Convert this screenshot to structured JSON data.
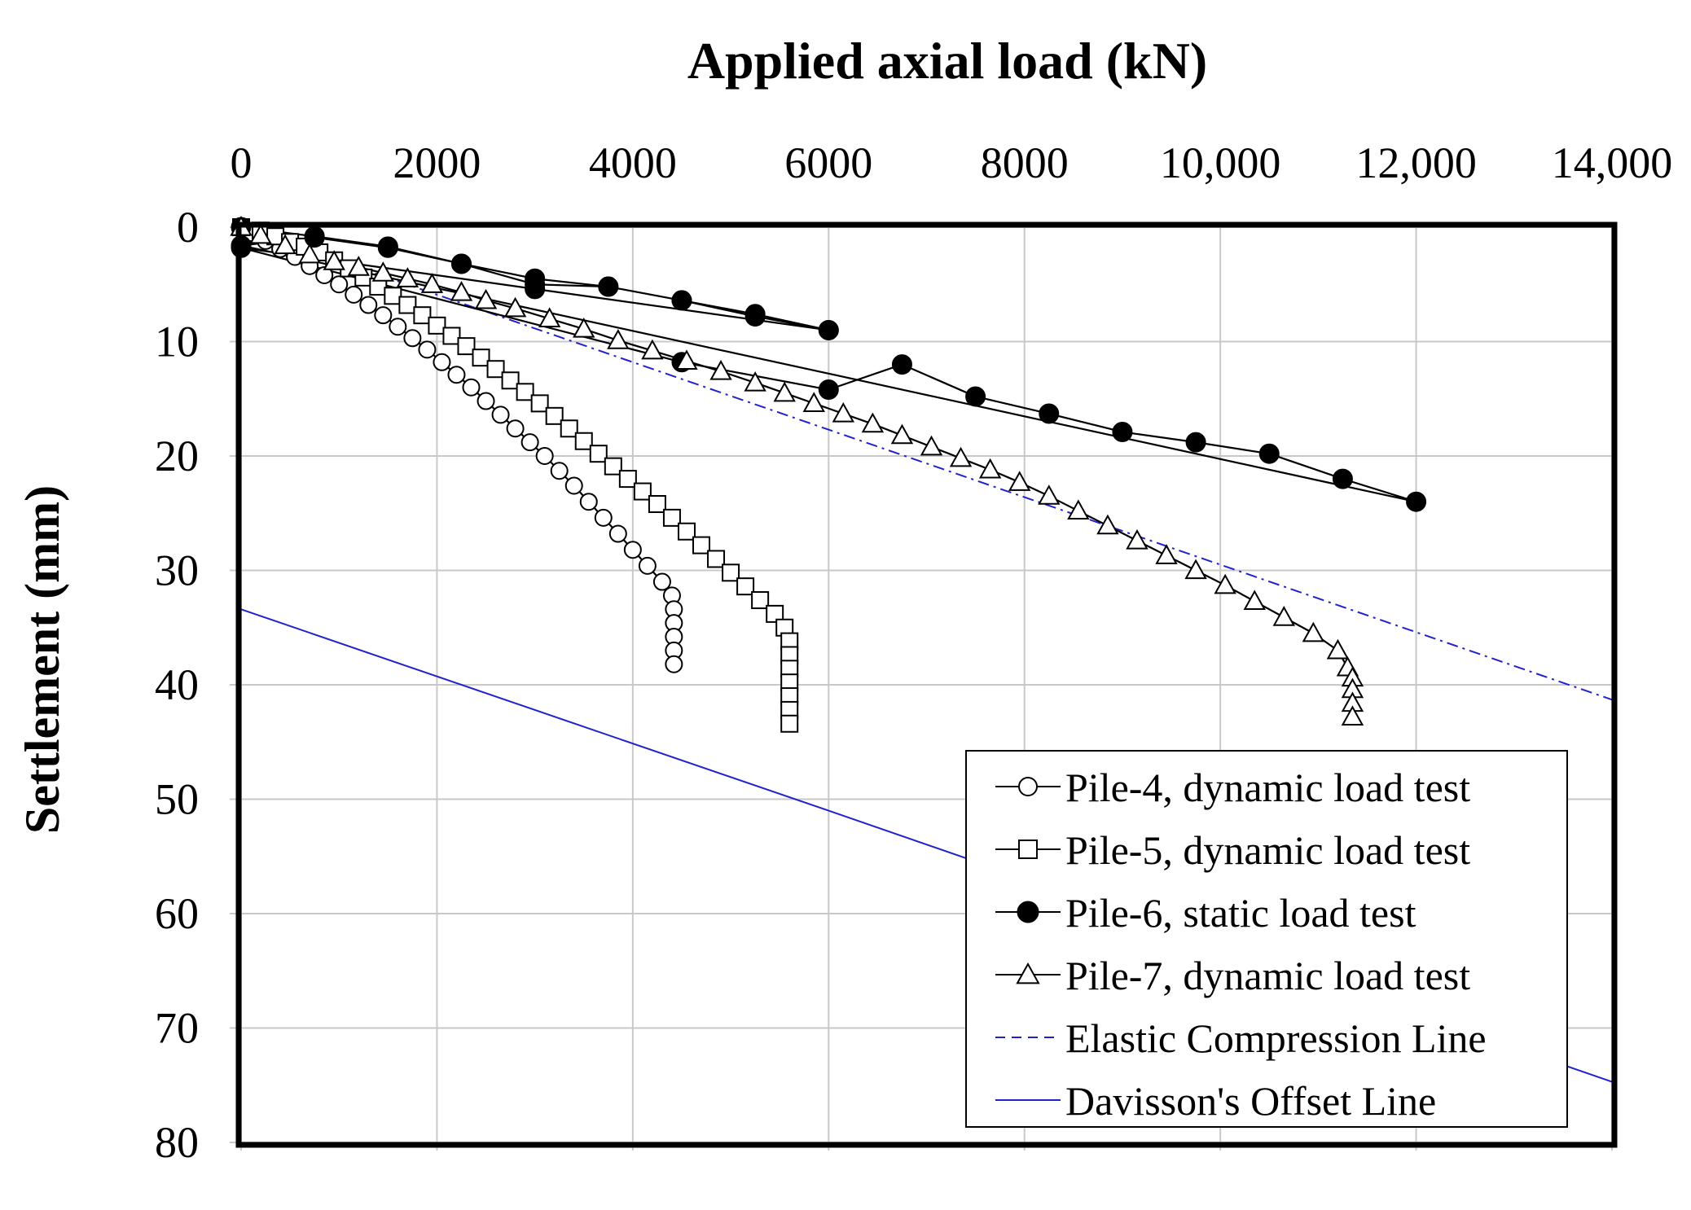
{
  "chart_data": {
    "type": "line",
    "title": "Applied axial load (kN)",
    "xlabel": "Applied axial load (kN)",
    "ylabel": "Settlement (mm)",
    "xlim": [
      0,
      14000
    ],
    "ylim": [
      0,
      80
    ],
    "y_inverted": true,
    "x_axis_position": "top",
    "x_ticks": [
      0,
      2000,
      4000,
      6000,
      8000,
      10000,
      12000,
      14000
    ],
    "x_tick_labels": [
      "0",
      "2000",
      "4000",
      "6000",
      "8000",
      "10,000",
      "12,000",
      "14,000"
    ],
    "y_ticks": [
      0,
      10,
      20,
      30,
      40,
      50,
      60,
      70,
      80
    ],
    "y_tick_labels": [
      "0",
      "10",
      "20",
      "30",
      "40",
      "50",
      "60",
      "70",
      "80"
    ],
    "grid": true,
    "legend_position": "bottom-right",
    "series": [
      {
        "name": "Pile-4, dynamic load test",
        "marker": "circle-open",
        "color": "#000000",
        "line": "solid",
        "points": [
          [
            0,
            0
          ],
          [
            100,
            0.5
          ],
          [
            250,
            1.2
          ],
          [
            400,
            1.9
          ],
          [
            550,
            2.6
          ],
          [
            700,
            3.4
          ],
          [
            850,
            4.2
          ],
          [
            1000,
            5.0
          ],
          [
            1150,
            5.9
          ],
          [
            1300,
            6.8
          ],
          [
            1450,
            7.7
          ],
          [
            1600,
            8.7
          ],
          [
            1750,
            9.7
          ],
          [
            1900,
            10.7
          ],
          [
            2050,
            11.8
          ],
          [
            2200,
            12.9
          ],
          [
            2350,
            14.0
          ],
          [
            2500,
            15.2
          ],
          [
            2650,
            16.4
          ],
          [
            2800,
            17.6
          ],
          [
            2950,
            18.8
          ],
          [
            3100,
            20.0
          ],
          [
            3250,
            21.3
          ],
          [
            3400,
            22.6
          ],
          [
            3550,
            24.0
          ],
          [
            3700,
            25.4
          ],
          [
            3850,
            26.8
          ],
          [
            4000,
            28.2
          ],
          [
            4150,
            29.6
          ],
          [
            4300,
            31.0
          ],
          [
            4400,
            32.2
          ],
          [
            4420,
            33.4
          ],
          [
            4420,
            34.6
          ],
          [
            4420,
            35.8
          ],
          [
            4420,
            37.0
          ],
          [
            4420,
            38.2
          ]
        ]
      },
      {
        "name": "Pile-5, dynamic load test",
        "marker": "square-open",
        "color": "#000000",
        "line": "solid",
        "points": [
          [
            0,
            0
          ],
          [
            200,
            0.3
          ],
          [
            350,
            0.8
          ],
          [
            500,
            1.3
          ],
          [
            650,
            1.7
          ],
          [
            800,
            2.2
          ],
          [
            950,
            2.9
          ],
          [
            1100,
            3.6
          ],
          [
            1250,
            4.4
          ],
          [
            1400,
            5.2
          ],
          [
            1550,
            6.0
          ],
          [
            1700,
            6.8
          ],
          [
            1850,
            7.7
          ],
          [
            2000,
            8.6
          ],
          [
            2150,
            9.5
          ],
          [
            2300,
            10.4
          ],
          [
            2450,
            11.4
          ],
          [
            2600,
            12.4
          ],
          [
            2750,
            13.4
          ],
          [
            2900,
            14.4
          ],
          [
            3050,
            15.4
          ],
          [
            3200,
            16.5
          ],
          [
            3350,
            17.6
          ],
          [
            3500,
            18.7
          ],
          [
            3650,
            19.8
          ],
          [
            3800,
            20.9
          ],
          [
            3950,
            22.0
          ],
          [
            4100,
            23.1
          ],
          [
            4250,
            24.2
          ],
          [
            4400,
            25.4
          ],
          [
            4550,
            26.6
          ],
          [
            4700,
            27.8
          ],
          [
            4850,
            29.0
          ],
          [
            5000,
            30.2
          ],
          [
            5150,
            31.4
          ],
          [
            5300,
            32.6
          ],
          [
            5450,
            33.8
          ],
          [
            5550,
            35.0
          ],
          [
            5600,
            36.2
          ],
          [
            5600,
            37.4
          ],
          [
            5600,
            38.6
          ],
          [
            5600,
            39.8
          ],
          [
            5600,
            41.0
          ],
          [
            5600,
            42.2
          ],
          [
            5600,
            43.4
          ]
        ]
      },
      {
        "name": "Pile-6, static load test",
        "marker": "circle-filled",
        "color": "#000000",
        "line": "solid",
        "points": [
          [
            0,
            0
          ],
          [
            750,
            0.8
          ],
          [
            1500,
            1.7
          ],
          [
            2250,
            3.2
          ],
          [
            3000,
            4.5
          ],
          [
            3750,
            5.2
          ],
          [
            4500,
            6.4
          ],
          [
            5250,
            7.6
          ],
          [
            6000,
            9.0
          ],
          [
            3000,
            5.4
          ],
          [
            0,
            1.8
          ],
          [
            4500,
            11.8
          ],
          [
            6000,
            14.2
          ],
          [
            6750,
            12.0
          ],
          [
            7500,
            14.8
          ],
          [
            8250,
            16.3
          ],
          [
            9000,
            17.9
          ],
          [
            9750,
            18.8
          ],
          [
            10500,
            19.8
          ],
          [
            11250,
            22.0
          ],
          [
            12000,
            24.0
          ],
          [
            0,
            1.6
          ],
          [
            750,
            0.9
          ],
          [
            1500,
            1.8
          ],
          [
            2250,
            3.2
          ],
          [
            3000,
            5.0
          ],
          [
            3750,
            5.2
          ],
          [
            4500,
            6.4
          ],
          [
            5250,
            7.8
          ],
          [
            6000,
            9.0
          ]
        ]
      },
      {
        "name": "Pile-7, dynamic load test",
        "marker": "triangle-open",
        "color": "#000000",
        "line": "solid",
        "points": [
          [
            0,
            0
          ],
          [
            200,
            0.7
          ],
          [
            450,
            1.6
          ],
          [
            700,
            2.4
          ],
          [
            950,
            3.0
          ],
          [
            1200,
            3.5
          ],
          [
            1450,
            4.0
          ],
          [
            1700,
            4.5
          ],
          [
            1950,
            5.0
          ],
          [
            2250,
            5.7
          ],
          [
            2500,
            6.4
          ],
          [
            2800,
            7.1
          ],
          [
            3150,
            8.0
          ],
          [
            3500,
            8.9
          ],
          [
            3850,
            9.9
          ],
          [
            4200,
            10.8
          ],
          [
            4550,
            11.7
          ],
          [
            4900,
            12.6
          ],
          [
            5250,
            13.6
          ],
          [
            5550,
            14.5
          ],
          [
            5850,
            15.4
          ],
          [
            6150,
            16.3
          ],
          [
            6450,
            17.2
          ],
          [
            6750,
            18.2
          ],
          [
            7050,
            19.2
          ],
          [
            7350,
            20.2
          ],
          [
            7650,
            21.2
          ],
          [
            7950,
            22.3
          ],
          [
            8250,
            23.5
          ],
          [
            8550,
            24.8
          ],
          [
            8850,
            26.1
          ],
          [
            9150,
            27.4
          ],
          [
            9450,
            28.7
          ],
          [
            9750,
            30.0
          ],
          [
            10050,
            31.3
          ],
          [
            10350,
            32.7
          ],
          [
            10650,
            34.1
          ],
          [
            10950,
            35.5
          ],
          [
            11200,
            37.0
          ],
          [
            11300,
            38.5
          ],
          [
            11350,
            39.4
          ],
          [
            11350,
            40.4
          ],
          [
            11350,
            41.6
          ],
          [
            11350,
            42.8
          ]
        ]
      },
      {
        "name": "Elastic Compression Line",
        "marker": "none",
        "color": "#2222cc",
        "line": "dash-dot",
        "points": [
          [
            0,
            0
          ],
          [
            14000,
            41.3
          ]
        ]
      },
      {
        "name": "Davisson's Offset Line",
        "marker": "none",
        "color": "#2222cc",
        "line": "solid",
        "points": [
          [
            0,
            33.4
          ],
          [
            6000,
            51.0
          ],
          [
            14000,
            74.7
          ]
        ]
      }
    ]
  }
}
